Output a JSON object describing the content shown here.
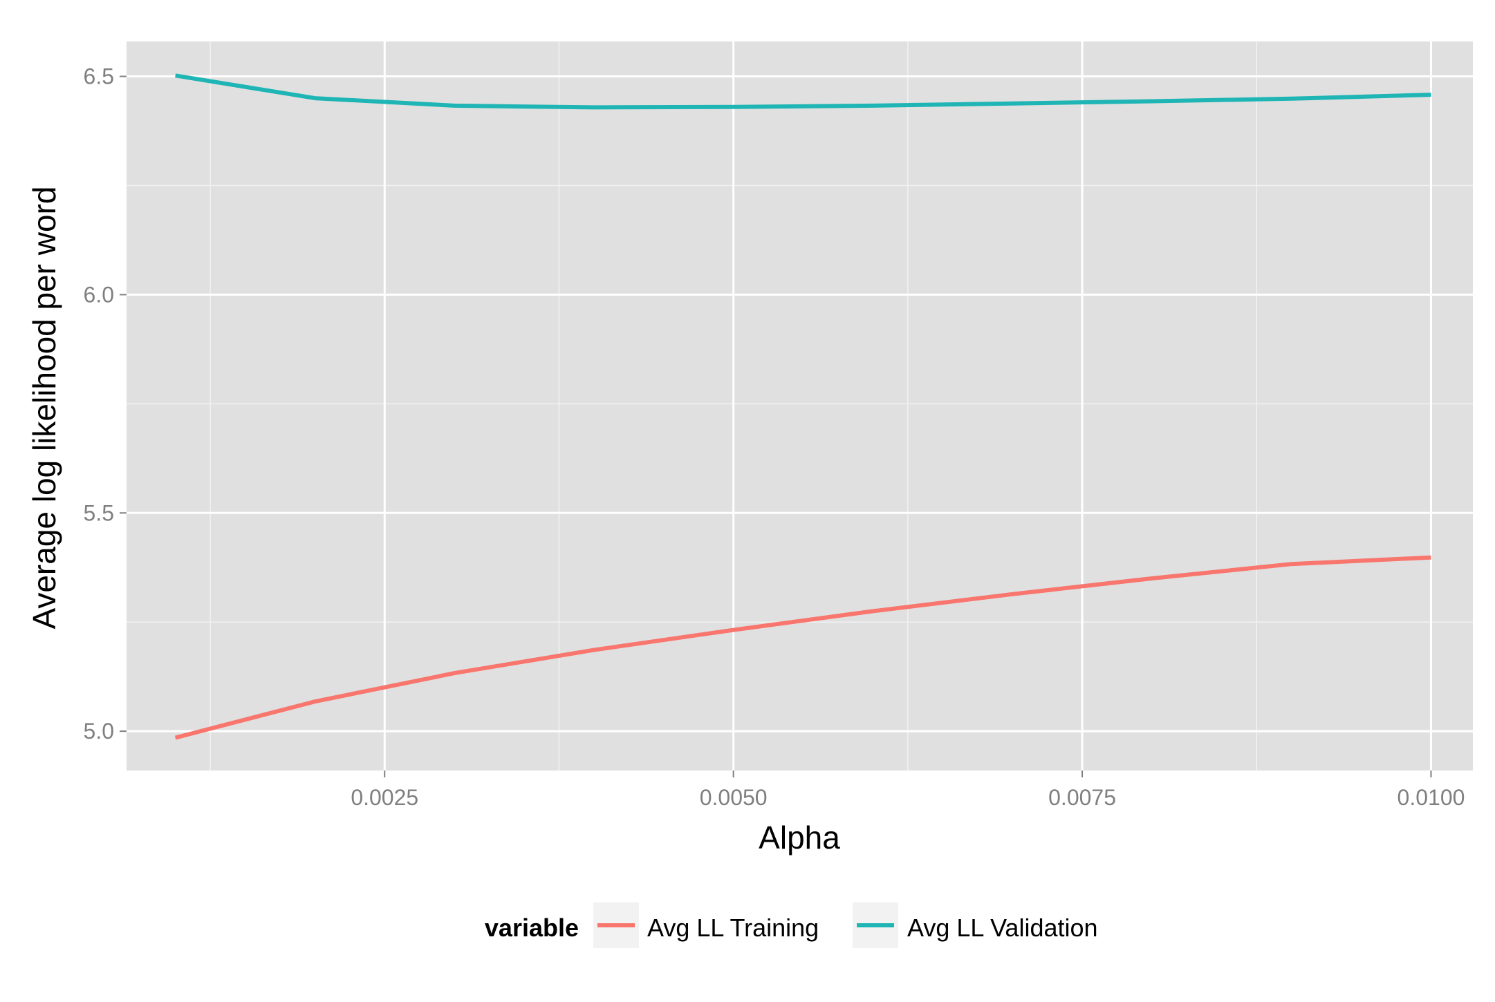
{
  "chart_data": {
    "type": "line",
    "xlabel": "Alpha",
    "ylabel": "Average log likelihood per word",
    "xlim": [
      0.00065,
      0.0103
    ],
    "ylim": [
      4.91,
      6.58
    ],
    "x_ticks": [
      0.0025,
      0.005,
      0.0075,
      0.01
    ],
    "x_tick_labels": [
      "0.0025",
      "0.0050",
      "0.0075",
      "0.0100"
    ],
    "y_ticks": [
      5.0,
      5.5,
      6.0,
      6.5
    ],
    "y_tick_labels": [
      "5.0",
      "5.5",
      "6.0",
      "6.5"
    ],
    "grid": true,
    "legend": {
      "position": "bottom",
      "title": "variable"
    },
    "x": [
      0.001,
      0.002,
      0.003,
      0.004,
      0.005,
      0.006,
      0.007,
      0.008,
      0.009,
      0.01
    ],
    "series": [
      {
        "name": "Avg LL Training",
        "color": "#f8766d",
        "values": [
          4.985,
          5.068,
          5.133,
          5.186,
          5.232,
          5.275,
          5.314,
          5.35,
          5.383,
          5.398
        ]
      },
      {
        "name": "Avg LL Validation",
        "color": "#1fb5b5",
        "values": [
          6.502,
          6.45,
          6.433,
          6.429,
          6.43,
          6.433,
          6.438,
          6.443,
          6.449,
          6.458
        ]
      }
    ]
  }
}
